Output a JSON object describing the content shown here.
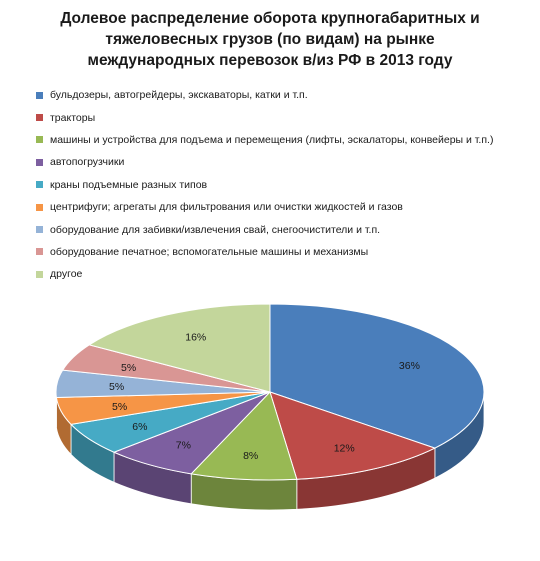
{
  "chart_data": {
    "type": "pie",
    "title_lines": [
      "Долевое распределение оборота крупногабаритных и",
      "тяжеловесных грузов (по видам) на рынке",
      "международных перевозок в/из РФ в 2013 году"
    ],
    "legend_position": "top",
    "slices": [
      {
        "label": "бульдозеры, автогрейдеры, экскаваторы, катки и т.п.",
        "value": 36,
        "value_label": "36%",
        "color": "#4a7ebb"
      },
      {
        "label": "тракторы",
        "value": 12,
        "value_label": "12%",
        "color": "#be4b48"
      },
      {
        "label": "машины и устройства для подъема и перемещения (лифты, эскалаторы, конвейеры и т.п.)",
        "value": 8,
        "value_label": "8%",
        "color": "#98b954"
      },
      {
        "label": "автопогрузчики",
        "value": 7,
        "value_label": "7%",
        "color": "#7d5fa0"
      },
      {
        "label": "краны подъемные разных типов",
        "value": 6,
        "value_label": "6%",
        "color": "#46aac5"
      },
      {
        "label": "центрифуги; агрегаты для фильтрования или очистки жидкостей и газов",
        "value": 5,
        "value_label": "5%",
        "color": "#f69546"
      },
      {
        "label": "оборудование для забивки/извлечения свай, снегоочистители и т.п.",
        "value": 5,
        "value_label": "5%",
        "color": "#95b3d7"
      },
      {
        "label": "оборудование печатное; вспомогательные машины и механизмы",
        "value": 5,
        "value_label": "5%",
        "color": "#d99694"
      },
      {
        "label": "другое",
        "value": 16,
        "value_label": "16%",
        "color": "#c3d69b"
      }
    ]
  }
}
